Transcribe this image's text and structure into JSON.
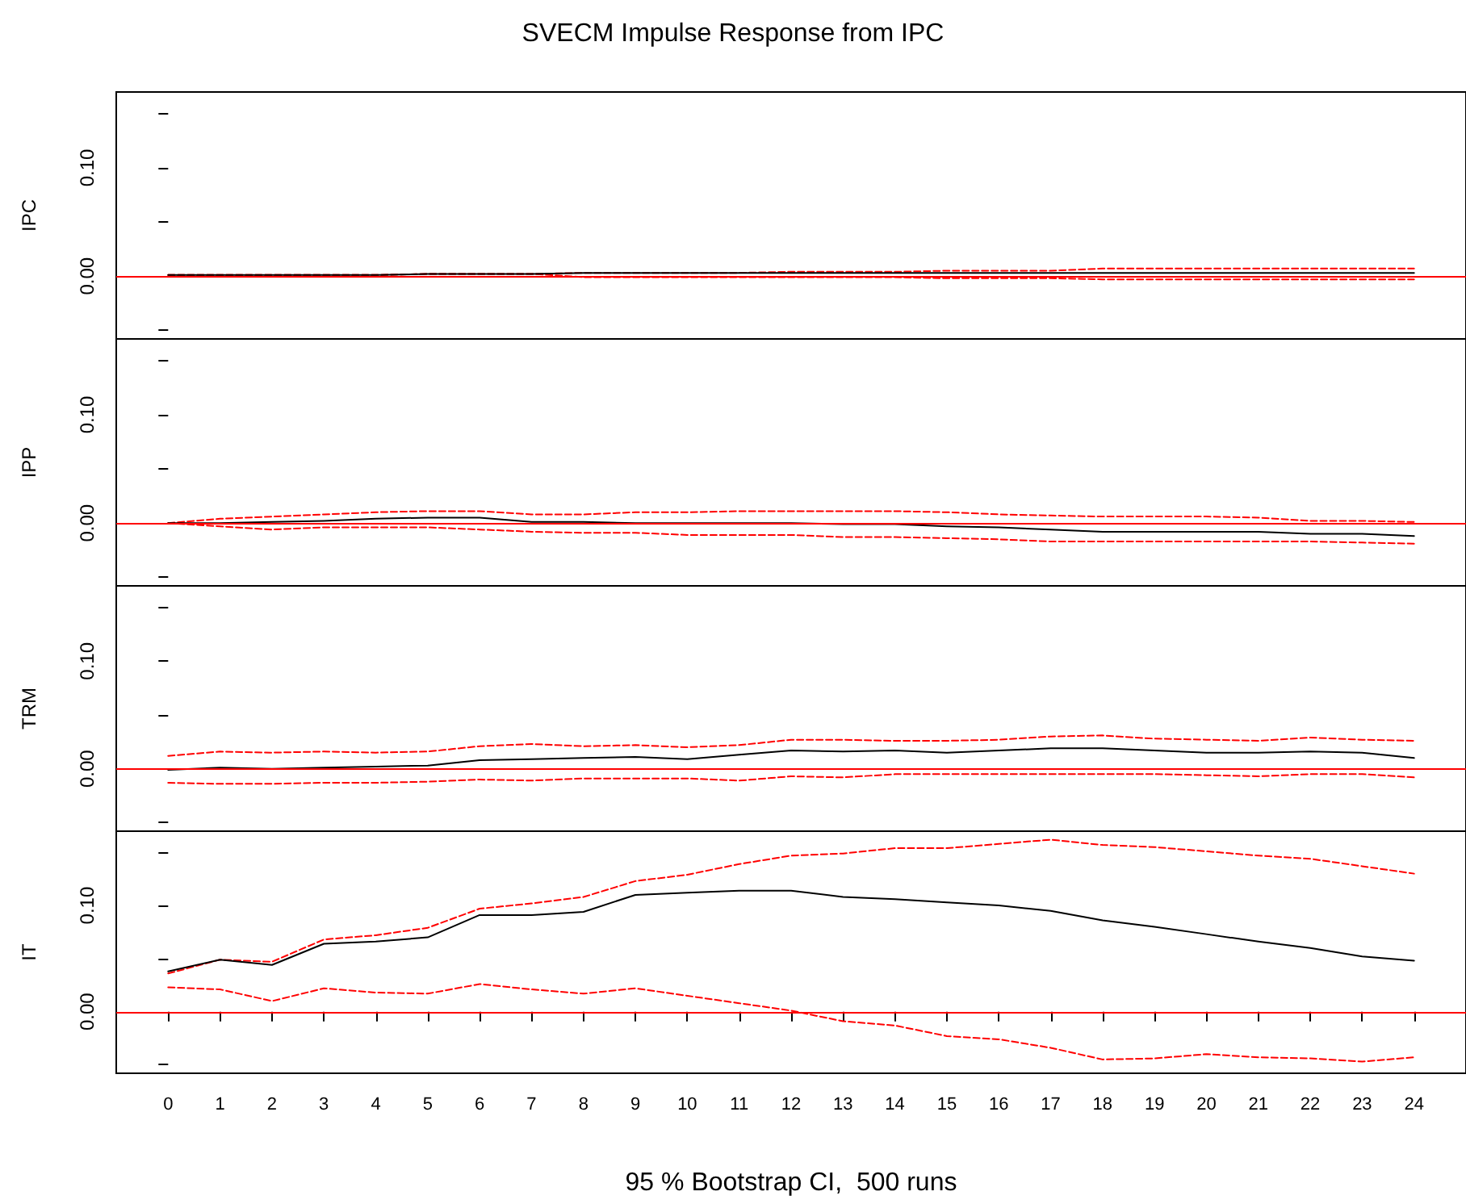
{
  "chart_data": [
    {
      "type": "line",
      "title": "SVECM Impulse Response from IPC",
      "ylabel": "IPC",
      "tick_labels": "y",
      "marker": "none",
      "x": [
        0,
        1,
        2,
        3,
        4,
        5,
        6,
        7,
        8,
        9,
        10,
        11,
        12,
        13,
        14,
        15,
        16,
        17,
        18,
        19,
        20,
        21,
        22,
        23,
        24
      ],
      "xlim": [
        -1,
        25
      ],
      "xticks": [
        0,
        1,
        2,
        3,
        4,
        5,
        6,
        7,
        8,
        9,
        10,
        11,
        12,
        13,
        14,
        15,
        16,
        17,
        18,
        19,
        20,
        21,
        22,
        23,
        24
      ],
      "ylim": [
        -0.058,
        0.17
      ],
      "yticks": [
        {
          "value": -0.05,
          "label": null
        },
        {
          "value": 0,
          "label": "0.00"
        },
        {
          "value": 0.05,
          "label": null
        },
        {
          "value": 0.1,
          "label": "0.10"
        },
        {
          "value": 0.15,
          "label": null
        }
      ],
      "ref_lines": [
        {
          "axis": "y",
          "value": 0,
          "color": "#ff0000"
        }
      ],
      "series": [
        {
          "color": "#000000",
          "line_style": "solid",
          "values": [
            0.001,
            0.001,
            0.001,
            0.001,
            0.001,
            0.002,
            0.002,
            0.002,
            0.003,
            0.003,
            0.003,
            0.003,
            0.003,
            0.003,
            0.003,
            0.003,
            0.003,
            0.003,
            0.003,
            0.003,
            0.003,
            0.003,
            0.003,
            0.003,
            0.003
          ]
        },
        {
          "color": "#ff0000",
          "line_style": "dashed",
          "values": [
            0.001,
            0.001,
            0.001,
            0.001,
            0.001,
            0.002,
            0.002,
            0.002,
            0.003,
            0.003,
            0.003,
            0.003,
            0.004,
            0.004,
            0.004,
            0.005,
            0.005,
            0.005,
            0.007,
            0.007,
            0.007,
            0.007,
            0.007,
            0.007,
            0.007
          ]
        },
        {
          "color": "#ff0000",
          "line_style": "dashed",
          "values": [
            0.001,
            0.001,
            0.001,
            0.001,
            0.001,
            0.002,
            0.002,
            0.002,
            -0.001,
            -0.001,
            -0.001,
            -0.001,
            -0.001,
            -0.001,
            -0.001,
            -0.002,
            -0.002,
            -0.002,
            -0.003,
            -0.003,
            -0.003,
            -0.003,
            -0.003,
            -0.003,
            -0.003
          ]
        }
      ]
    },
    {
      "type": "line",
      "ylabel": "IPP",
      "tick_labels": "y",
      "marker": "none",
      "x": [
        0,
        1,
        2,
        3,
        4,
        5,
        6,
        7,
        8,
        9,
        10,
        11,
        12,
        13,
        14,
        15,
        16,
        17,
        18,
        19,
        20,
        21,
        22,
        23,
        24
      ],
      "xlim": [
        -1,
        25
      ],
      "xticks": [
        0,
        1,
        2,
        3,
        4,
        5,
        6,
        7,
        8,
        9,
        10,
        11,
        12,
        13,
        14,
        15,
        16,
        17,
        18,
        19,
        20,
        21,
        22,
        23,
        24
      ],
      "ylim": [
        -0.058,
        0.17
      ],
      "yticks": [
        {
          "value": -0.05,
          "label": null
        },
        {
          "value": 0,
          "label": "0.00"
        },
        {
          "value": 0.05,
          "label": null
        },
        {
          "value": 0.1,
          "label": "0.10"
        },
        {
          "value": 0.15,
          "label": null
        }
      ],
      "ref_lines": [
        {
          "axis": "y",
          "value": 0,
          "color": "#ff0000"
        }
      ],
      "series": [
        {
          "color": "#000000",
          "line_style": "solid",
          "values": [
            0,
            0,
            0.001,
            0.002,
            0.004,
            0.005,
            0.005,
            0.001,
            0.001,
            0,
            0,
            0,
            0,
            -0.001,
            -0.001,
            -0.003,
            -0.004,
            -0.006,
            -0.008,
            -0.008,
            -0.008,
            -0.008,
            -0.01,
            -0.01,
            -0.012
          ]
        },
        {
          "color": "#ff0000",
          "line_style": "dashed",
          "values": [
            0,
            0.004,
            0.006,
            0.008,
            0.01,
            0.011,
            0.011,
            0.008,
            0.008,
            0.01,
            0.01,
            0.011,
            0.011,
            0.011,
            0.011,
            0.01,
            0.008,
            0.007,
            0.006,
            0.006,
            0.006,
            0.005,
            0.002,
            0.002,
            0.001
          ]
        },
        {
          "color": "#ff0000",
          "line_style": "dashed",
          "values": [
            0,
            -0.003,
            -0.006,
            -0.004,
            -0.004,
            -0.004,
            -0.006,
            -0.008,
            -0.009,
            -0.009,
            -0.011,
            -0.011,
            -0.011,
            -0.013,
            -0.013,
            -0.014,
            -0.015,
            -0.017,
            -0.017,
            -0.017,
            -0.017,
            -0.017,
            -0.017,
            -0.018,
            -0.019
          ]
        }
      ]
    },
    {
      "type": "line",
      "ylabel": "TRM",
      "tick_labels": "y",
      "marker": "none",
      "x": [
        0,
        1,
        2,
        3,
        4,
        5,
        6,
        7,
        8,
        9,
        10,
        11,
        12,
        13,
        14,
        15,
        16,
        17,
        18,
        19,
        20,
        21,
        22,
        23,
        24
      ],
      "xlim": [
        -1,
        25
      ],
      "xticks": [
        0,
        1,
        2,
        3,
        4,
        5,
        6,
        7,
        8,
        9,
        10,
        11,
        12,
        13,
        14,
        15,
        16,
        17,
        18,
        19,
        20,
        21,
        22,
        23,
        24
      ],
      "ylim": [
        -0.058,
        0.17
      ],
      "yticks": [
        {
          "value": -0.05,
          "label": null
        },
        {
          "value": 0,
          "label": "0.00"
        },
        {
          "value": 0.05,
          "label": null
        },
        {
          "value": 0.1,
          "label": "0.10"
        },
        {
          "value": 0.15,
          "label": null
        }
      ],
      "ref_lines": [
        {
          "axis": "y",
          "value": 0,
          "color": "#ff0000"
        }
      ],
      "series": [
        {
          "color": "#000000",
          "line_style": "solid",
          "values": [
            -0.001,
            0.001,
            0,
            0.001,
            0.002,
            0.003,
            0.008,
            0.009,
            0.01,
            0.011,
            0.009,
            0.013,
            0.017,
            0.016,
            0.017,
            0.015,
            0.017,
            0.019,
            0.019,
            0.017,
            0.015,
            0.015,
            0.016,
            0.015,
            0.01
          ]
        },
        {
          "color": "#ff0000",
          "line_style": "dashed",
          "values": [
            0.012,
            0.016,
            0.015,
            0.016,
            0.015,
            0.016,
            0.021,
            0.023,
            0.021,
            0.022,
            0.02,
            0.022,
            0.027,
            0.027,
            0.026,
            0.026,
            0.027,
            0.03,
            0.031,
            0.028,
            0.027,
            0.026,
            0.029,
            0.027,
            0.026
          ]
        },
        {
          "color": "#ff0000",
          "line_style": "dashed",
          "values": [
            -0.013,
            -0.014,
            -0.014,
            -0.013,
            -0.013,
            -0.012,
            -0.01,
            -0.011,
            -0.009,
            -0.009,
            -0.009,
            -0.011,
            -0.007,
            -0.008,
            -0.005,
            -0.005,
            -0.005,
            -0.005,
            -0.005,
            -0.005,
            -0.006,
            -0.007,
            -0.005,
            -0.005,
            -0.008
          ]
        }
      ]
    },
    {
      "type": "line",
      "ylabel": "IT",
      "xlabel": "95 % Bootstrap CI,  500 runs",
      "marker": "none",
      "x": [
        0,
        1,
        2,
        3,
        4,
        5,
        6,
        7,
        8,
        9,
        10,
        11,
        12,
        13,
        14,
        15,
        16,
        17,
        18,
        19,
        20,
        21,
        22,
        23,
        24
      ],
      "xlim": [
        -1,
        25
      ],
      "xticks": [
        0,
        1,
        2,
        3,
        4,
        5,
        6,
        7,
        8,
        9,
        10,
        11,
        12,
        13,
        14,
        15,
        16,
        17,
        18,
        19,
        20,
        21,
        22,
        23,
        24
      ],
      "ylim": [
        -0.058,
        0.17
      ],
      "yticks": [
        {
          "value": -0.05,
          "label": null
        },
        {
          "value": 0,
          "label": "0.00"
        },
        {
          "value": 0.05,
          "label": null
        },
        {
          "value": 0.1,
          "label": "0.10"
        },
        {
          "value": 0.15,
          "label": null
        }
      ],
      "ref_lines": [
        {
          "axis": "y",
          "value": 0,
          "color": "#ff0000"
        }
      ],
      "series": [
        {
          "color": "#000000",
          "line_style": "solid",
          "values": [
            0.038,
            0.049,
            0.044,
            0.064,
            0.066,
            0.07,
            0.091,
            0.091,
            0.094,
            0.11,
            0.112,
            0.114,
            0.114,
            0.108,
            0.106,
            0.103,
            0.1,
            0.095,
            0.086,
            0.08,
            0.073,
            0.066,
            0.06,
            0.052,
            0.048
          ]
        },
        {
          "color": "#ff0000",
          "line_style": "dashed",
          "values": [
            0.036,
            0.049,
            0.047,
            0.068,
            0.072,
            0.079,
            0.097,
            0.102,
            0.108,
            0.123,
            0.129,
            0.139,
            0.147,
            0.149,
            0.154,
            0.154,
            0.158,
            0.162,
            0.157,
            0.155,
            0.151,
            0.147,
            0.144,
            0.137,
            0.13
          ]
        },
        {
          "color": "#ff0000",
          "line_style": "dashed",
          "values": [
            0.023,
            0.021,
            0.01,
            0.022,
            0.018,
            0.017,
            0.026,
            0.021,
            0.017,
            0.022,
            0.015,
            0.008,
            0.001,
            -0.009,
            -0.013,
            -0.023,
            -0.026,
            -0.034,
            -0.045,
            -0.044,
            -0.04,
            -0.043,
            -0.044,
            -0.047,
            -0.043
          ]
        }
      ]
    }
  ]
}
